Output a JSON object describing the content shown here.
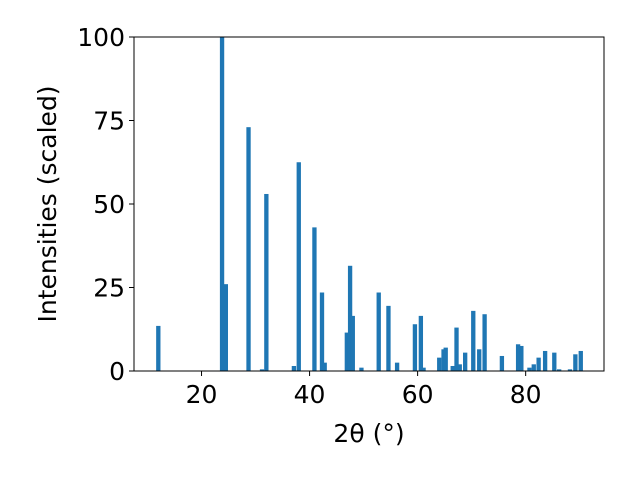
{
  "chart_data": {
    "type": "bar",
    "title": "",
    "xlabel": "2θ (°)",
    "ylabel": "Intensities (scaled)",
    "xlim": [
      7.5,
      94.5
    ],
    "ylim": [
      0,
      100
    ],
    "xticks": [
      20,
      40,
      60,
      80
    ],
    "yticks": [
      0,
      25,
      50,
      75,
      100
    ],
    "grid": false,
    "bar_color": "#1f77b4",
    "bar_width": 0.8,
    "x": [
      12.0,
      23.8,
      24.5,
      28.7,
      31.2,
      32.0,
      37.1,
      38.0,
      40.9,
      42.3,
      42.8,
      46.9,
      47.5,
      48.0,
      49.6,
      52.8,
      54.6,
      56.2,
      59.5,
      60.6,
      61.1,
      64.0,
      64.8,
      65.2,
      66.5,
      67.2,
      67.8,
      68.8,
      70.3,
      71.4,
      72.4,
      75.6,
      78.6,
      79.2,
      80.7,
      81.5,
      82.4,
      83.6,
      85.3,
      86.2,
      88.2,
      89.2,
      90.2
    ],
    "values": [
      13.5,
      100,
      26,
      73,
      0.5,
      53,
      1.5,
      62.5,
      43,
      23.5,
      2.5,
      11.5,
      31.5,
      16.5,
      1,
      23.5,
      19.5,
      2.5,
      14,
      16.5,
      1,
      4,
      6.5,
      7,
      1.5,
      13,
      2,
      5.5,
      18,
      6.5,
      17,
      4.5,
      8,
      7.5,
      1,
      2,
      4,
      6,
      5.5,
      0.5,
      0.5,
      5,
      6
    ]
  }
}
